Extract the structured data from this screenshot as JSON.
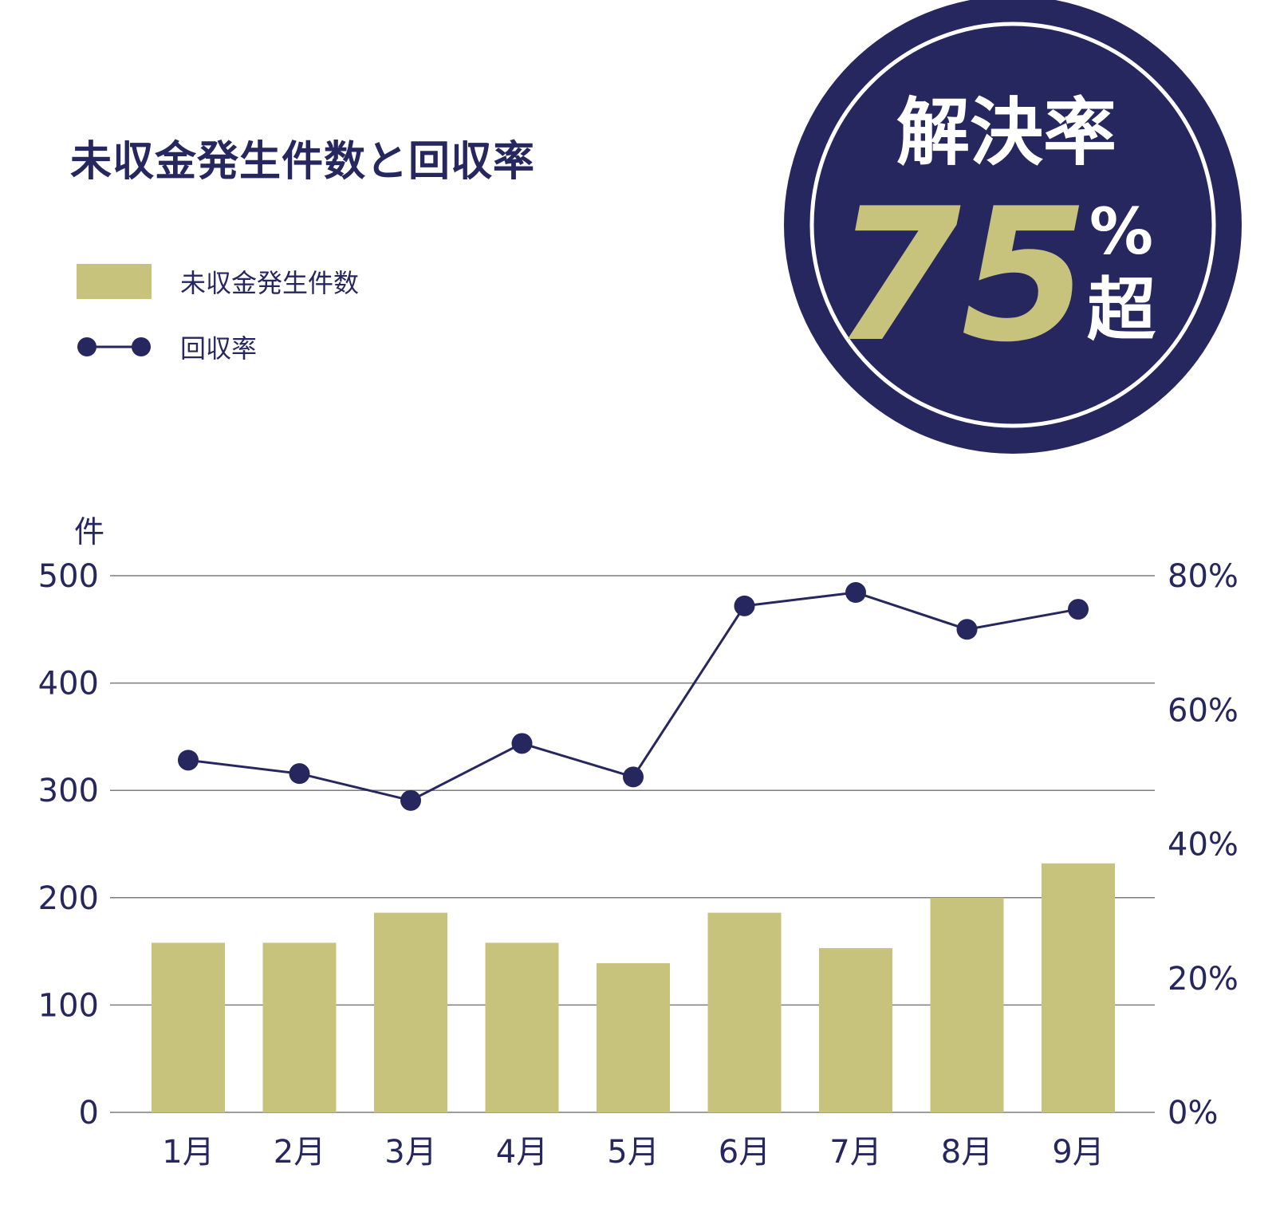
{
  "colors": {
    "navy": "#27275f",
    "bar": "#c7c37d",
    "grid": "#7d7d7d",
    "white": "#ffffff"
  },
  "badge": {
    "label": "解決率",
    "number": "75",
    "percent": "%",
    "suffix": "超"
  },
  "chart_data": {
    "type": "bar",
    "title": "未収金発生件数と回収率",
    "categories": [
      "1月",
      "2月",
      "3月",
      "4月",
      "5月",
      "6月",
      "7月",
      "8月",
      "9月"
    ],
    "series": [
      {
        "name": "未収金発生件数",
        "type": "bar",
        "axis": "left",
        "values": [
          158,
          158,
          186,
          158,
          139,
          186,
          153,
          200,
          232
        ]
      },
      {
        "name": "回収率",
        "type": "line",
        "axis": "right",
        "unit": "%",
        "values": [
          52.5,
          50.5,
          46.5,
          55,
          50,
          75.5,
          77.5,
          72,
          75
        ]
      }
    ],
    "y_left": {
      "label": "件",
      "range": [
        0,
        500
      ],
      "ticks": [
        "0",
        "100",
        "200",
        "300",
        "400",
        "500"
      ]
    },
    "y_right": {
      "range": [
        0,
        80
      ],
      "ticks": [
        "0%",
        "20%",
        "40%",
        "60%",
        "80%"
      ]
    },
    "grid": true,
    "legend": "top-left"
  }
}
